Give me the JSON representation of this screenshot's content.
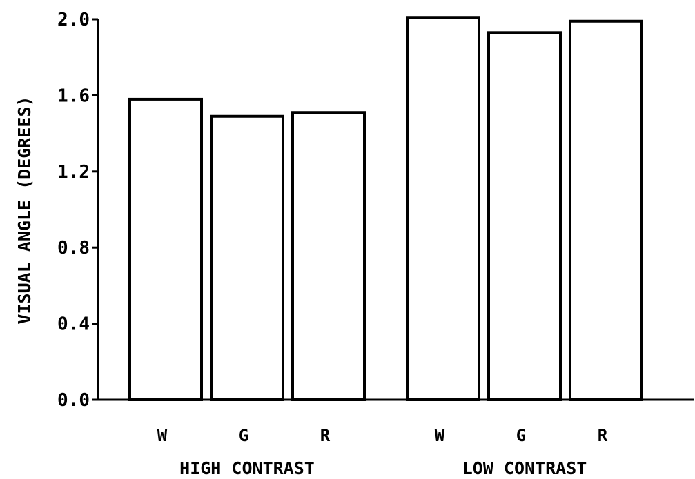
{
  "chart_data": {
    "type": "bar",
    "title": "",
    "ylabel": "VISUAL ANGLE (DEGREES)",
    "xlabel": "",
    "ylim": [
      0.0,
      2.0
    ],
    "y_ticks": [
      "0.0",
      "0.4",
      "0.8",
      "1.2",
      "1.6",
      "2.0"
    ],
    "y_tick_values": [
      0.0,
      0.4,
      0.8,
      1.2,
      1.6,
      2.0
    ],
    "grid": false,
    "groups": [
      {
        "name": "HIGH CONTRAST",
        "categories": [
          "W",
          "G",
          "R"
        ],
        "values": [
          1.58,
          1.49,
          1.51
        ]
      },
      {
        "name": "LOW CONTRAST",
        "categories": [
          "W",
          "G",
          "R"
        ],
        "values": [
          2.01,
          1.93,
          1.99
        ]
      }
    ]
  },
  "colors": {
    "bar_fill": "#ffffff",
    "bar_stroke": "#000000",
    "text": "#000000"
  }
}
